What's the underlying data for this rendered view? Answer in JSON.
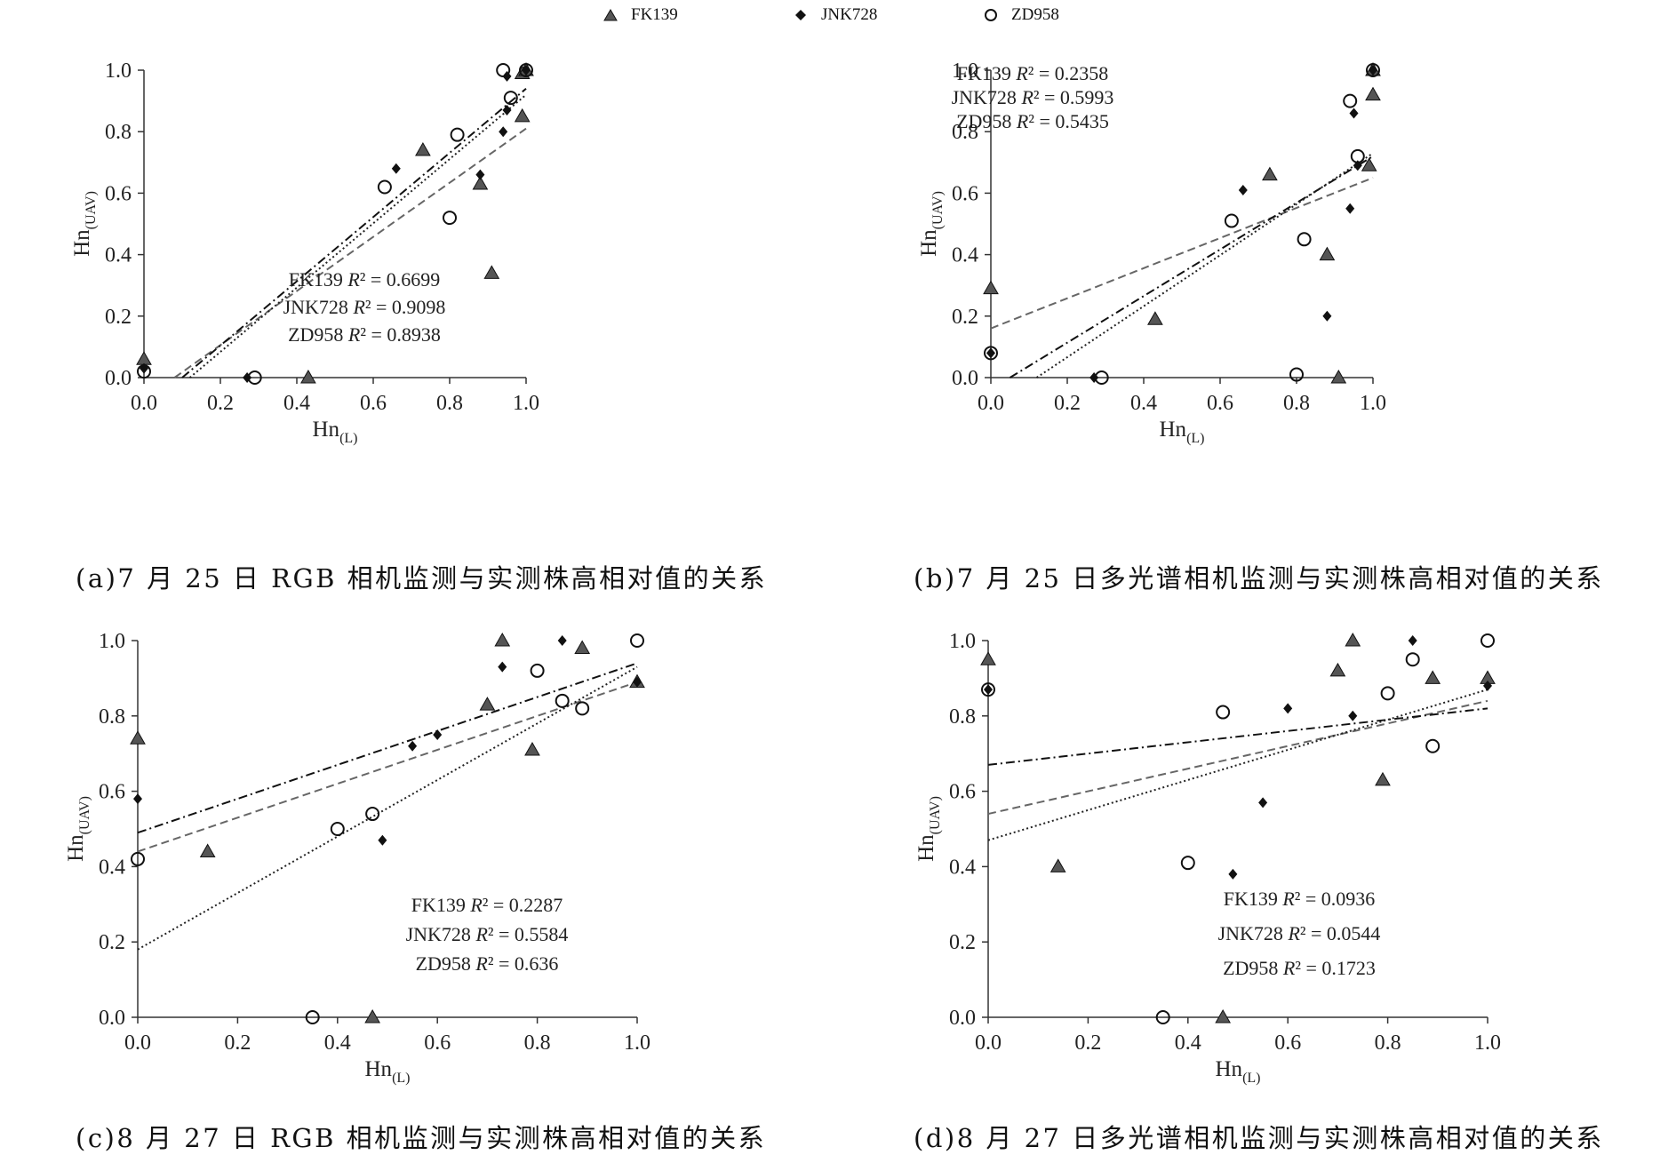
{
  "legend": [
    {
      "name": "FK139",
      "marker": "triangle"
    },
    {
      "name": "JNK728",
      "marker": "diamond"
    },
    {
      "name": "ZD958",
      "marker": "circle"
    }
  ],
  "colors": {
    "FK139": "#555555",
    "JNK728": "#111111",
    "ZD958": "#111111"
  },
  "chart_data": [
    {
      "type": "scatter",
      "id": "a",
      "caption": "(a)7 月 25 日 RGB 相机监测与实测株高相对值的关系",
      "xlabel": "Hn(L)",
      "ylabel": "Hn(UAV)",
      "xlabel_main": "Hn",
      "xlabel_sub": "(L)",
      "ylabel_main": "Hn",
      "ylabel_sub": "(UAV)",
      "xlim": [
        0,
        1
      ],
      "ylim": [
        0,
        1
      ],
      "xticks": [
        "0.0",
        "0.2",
        "0.4",
        "0.6",
        "0.8",
        "1.0"
      ],
      "yticks": [
        "0.0",
        "0.2",
        "0.4",
        "0.6",
        "0.8",
        "1.0"
      ],
      "r2_text": [
        {
          "series": "FK139",
          "label": "R² = 0.6699"
        },
        {
          "series": "JNK728",
          "label": "R² = 0.9098"
        },
        {
          "series": "ZD958",
          "label": "R² = 0.8938"
        }
      ],
      "series": [
        {
          "name": "FK139",
          "marker": "triangle",
          "line": "dashed",
          "points": [
            [
              0,
              0.06
            ],
            [
              0.43,
              0.0
            ],
            [
              0.73,
              0.74
            ],
            [
              0.88,
              0.63
            ],
            [
              0.91,
              0.34
            ],
            [
              0.99,
              0.85
            ],
            [
              0.99,
              0.99
            ],
            [
              1.0,
              1.0
            ]
          ],
          "fit": [
            [
              0.08,
              0.0
            ],
            [
              1.0,
              0.81
            ]
          ]
        },
        {
          "name": "JNK728",
          "marker": "diamond",
          "line": "dashdot",
          "points": [
            [
              0,
              0.03
            ],
            [
              0.27,
              0.0
            ],
            [
              0.66,
              0.68
            ],
            [
              0.88,
              0.66
            ],
            [
              0.94,
              0.8
            ],
            [
              0.95,
              0.87
            ],
            [
              0.95,
              0.98
            ],
            [
              1.0,
              1.0
            ]
          ],
          "fit": [
            [
              0.1,
              0.0
            ],
            [
              1.0,
              0.94
            ]
          ]
        },
        {
          "name": "ZD958",
          "marker": "circle",
          "line": "dotted",
          "points": [
            [
              0,
              0.02
            ],
            [
              0.29,
              0.0
            ],
            [
              0.63,
              0.62
            ],
            [
              0.8,
              0.52
            ],
            [
              0.82,
              0.79
            ],
            [
              0.94,
              1.0
            ],
            [
              0.96,
              0.91
            ],
            [
              1.0,
              1.0
            ]
          ],
          "fit": [
            [
              0.12,
              0.0
            ],
            [
              1.0,
              0.92
            ]
          ]
        }
      ]
    },
    {
      "type": "scatter",
      "id": "b",
      "caption": "(b)7 月 25 日多光谱相机监测与实测株高相对值的关系",
      "xlabel": "Hn(L)",
      "ylabel": "Hn(UAV)",
      "xlabel_main": "Hn",
      "xlabel_sub": "(L)",
      "ylabel_main": "Hn",
      "ylabel_sub": "(UAV)",
      "xlim": [
        0,
        1
      ],
      "ylim": [
        0,
        1
      ],
      "xticks": [
        "0.0",
        "0.2",
        "0.4",
        "0.6",
        "0.8",
        "1.0"
      ],
      "yticks": [
        "0.0",
        "0.2",
        "0.4",
        "0.6",
        "0.8",
        "1.0"
      ],
      "r2_text": [
        {
          "series": "FK139",
          "label": "R² = 0.2358"
        },
        {
          "series": "JNK728",
          "label": "R² = 0.5993"
        },
        {
          "series": "ZD958",
          "label": "R² = 0.5435"
        }
      ],
      "series": [
        {
          "name": "FK139",
          "marker": "triangle",
          "line": "dashed",
          "points": [
            [
              0,
              0.29
            ],
            [
              0.43,
              0.19
            ],
            [
              0.73,
              0.66
            ],
            [
              0.88,
              0.4
            ],
            [
              0.91,
              0.0
            ],
            [
              0.99,
              0.69
            ],
            [
              1.0,
              0.92
            ],
            [
              1.0,
              1.0
            ]
          ],
          "fit": [
            [
              0,
              0.16
            ],
            [
              1.0,
              0.65
            ]
          ]
        },
        {
          "name": "JNK728",
          "marker": "diamond",
          "line": "dashdot",
          "points": [
            [
              0,
              0.08
            ],
            [
              0.27,
              0.0
            ],
            [
              0.66,
              0.61
            ],
            [
              0.88,
              0.2
            ],
            [
              0.94,
              0.55
            ],
            [
              0.95,
              0.86
            ],
            [
              0.96,
              0.69
            ],
            [
              1.0,
              1.0
            ]
          ],
          "fit": [
            [
              0.05,
              0.0
            ],
            [
              1.0,
              0.72
            ]
          ]
        },
        {
          "name": "ZD958",
          "marker": "circle",
          "line": "dotted",
          "points": [
            [
              0,
              0.08
            ],
            [
              0.29,
              0.0
            ],
            [
              0.63,
              0.51
            ],
            [
              0.8,
              0.01
            ],
            [
              0.82,
              0.45
            ],
            [
              0.94,
              0.9
            ],
            [
              0.96,
              0.72
            ],
            [
              1.0,
              1.0
            ]
          ],
          "fit": [
            [
              0.12,
              0.0
            ],
            [
              1.0,
              0.73
            ]
          ]
        }
      ]
    },
    {
      "type": "scatter",
      "id": "c",
      "caption": "(c)8 月 27 日 RGB 相机监测与实测株高相对值的关系",
      "xlabel": "Hn(L)",
      "ylabel": "Hn(UAV)",
      "xlabel_main": "Hn",
      "xlabel_sub": "(L)",
      "ylabel_main": "Hn",
      "ylabel_sub": "(UAV)",
      "xlim": [
        0,
        1
      ],
      "ylim": [
        0,
        1
      ],
      "xticks": [
        "0.0",
        "0.2",
        "0.4",
        "0.6",
        "0.8",
        "1.0"
      ],
      "yticks": [
        "0.0",
        "0.2",
        "0.4",
        "0.6",
        "0.8",
        "1.0"
      ],
      "r2_text": [
        {
          "series": "FK139",
          "label": "R² = 0.2287"
        },
        {
          "series": "JNK728",
          "label": "R² = 0.5584"
        },
        {
          "series": "ZD958",
          "label": "R² = 0.636"
        }
      ],
      "series": [
        {
          "name": "FK139",
          "marker": "triangle",
          "line": "dashed",
          "points": [
            [
              0,
              0.74
            ],
            [
              0.14,
              0.44
            ],
            [
              0.47,
              0.0
            ],
            [
              0.7,
              0.83
            ],
            [
              0.73,
              1.0
            ],
            [
              0.79,
              0.71
            ],
            [
              0.89,
              0.98
            ],
            [
              1.0,
              0.89
            ]
          ],
          "fit": [
            [
              0,
              0.44
            ],
            [
              1.0,
              0.89
            ]
          ]
        },
        {
          "name": "JNK728",
          "marker": "diamond",
          "line": "dashdot",
          "points": [
            [
              0,
              0.58
            ],
            [
              0.49,
              0.47
            ],
            [
              0.55,
              0.72
            ],
            [
              0.6,
              0.75
            ],
            [
              0.73,
              0.93
            ],
            [
              0.85,
              1.0
            ],
            [
              1.0,
              0.89
            ]
          ],
          "fit": [
            [
              0,
              0.49
            ],
            [
              1.0,
              0.94
            ]
          ]
        },
        {
          "name": "ZD958",
          "marker": "circle",
          "line": "dotted",
          "points": [
            [
              0,
              0.42
            ],
            [
              0.35,
              0.0
            ],
            [
              0.4,
              0.5
            ],
            [
              0.47,
              0.54
            ],
            [
              0.8,
              0.92
            ],
            [
              0.85,
              0.84
            ],
            [
              0.89,
              0.82
            ],
            [
              1.0,
              1.0
            ]
          ],
          "fit": [
            [
              0,
              0.18
            ],
            [
              1.0,
              0.93
            ]
          ]
        }
      ]
    },
    {
      "type": "scatter",
      "id": "d",
      "caption": "(d)8 月 27 日多光谱相机监测与实测株高相对值的关系",
      "xlabel": "Hn(L)",
      "ylabel": "Hn(UAV)",
      "xlabel_main": "Hn",
      "xlabel_sub": "(L)",
      "ylabel_main": "Hn",
      "ylabel_sub": "(UAV)",
      "xlim": [
        0,
        1
      ],
      "ylim": [
        0,
        1
      ],
      "xticks": [
        "0.0",
        "0.2",
        "0.4",
        "0.6",
        "0.8",
        "1.0"
      ],
      "yticks": [
        "0.0",
        "0.2",
        "0.4",
        "0.6",
        "0.8",
        "1.0"
      ],
      "r2_text": [
        {
          "series": "FK139",
          "label": "R² = 0.0936"
        },
        {
          "series": "JNK728",
          "label": "R² = 0.0544"
        },
        {
          "series": "ZD958",
          "label": "R² = 0.1723"
        }
      ],
      "series": [
        {
          "name": "FK139",
          "marker": "triangle",
          "line": "dashed",
          "points": [
            [
              0,
              0.95
            ],
            [
              0.14,
              0.4
            ],
            [
              0.47,
              0.0
            ],
            [
              0.7,
              0.92
            ],
            [
              0.73,
              1.0
            ],
            [
              0.79,
              0.63
            ],
            [
              0.89,
              0.9
            ],
            [
              1.0,
              0.9
            ]
          ],
          "fit": [
            [
              0,
              0.54
            ],
            [
              1.0,
              0.84
            ]
          ]
        },
        {
          "name": "JNK728",
          "marker": "diamond",
          "line": "dashdot",
          "points": [
            [
              0,
              0.87
            ],
            [
              0.49,
              0.38
            ],
            [
              0.55,
              0.57
            ],
            [
              0.6,
              0.82
            ],
            [
              0.73,
              0.8
            ],
            [
              0.85,
              1.0
            ],
            [
              1.0,
              0.88
            ]
          ],
          "fit": [
            [
              0,
              0.67
            ],
            [
              1.0,
              0.82
            ]
          ]
        },
        {
          "name": "ZD958",
          "marker": "circle",
          "line": "dotted",
          "points": [
            [
              0,
              0.87
            ],
            [
              0.35,
              0.0
            ],
            [
              0.4,
              0.41
            ],
            [
              0.47,
              0.81
            ],
            [
              0.8,
              0.86
            ],
            [
              0.85,
              0.95
            ],
            [
              0.89,
              0.72
            ],
            [
              1.0,
              1.0
            ]
          ],
          "fit": [
            [
              0,
              0.47
            ],
            [
              1.0,
              0.87
            ]
          ]
        }
      ]
    }
  ]
}
